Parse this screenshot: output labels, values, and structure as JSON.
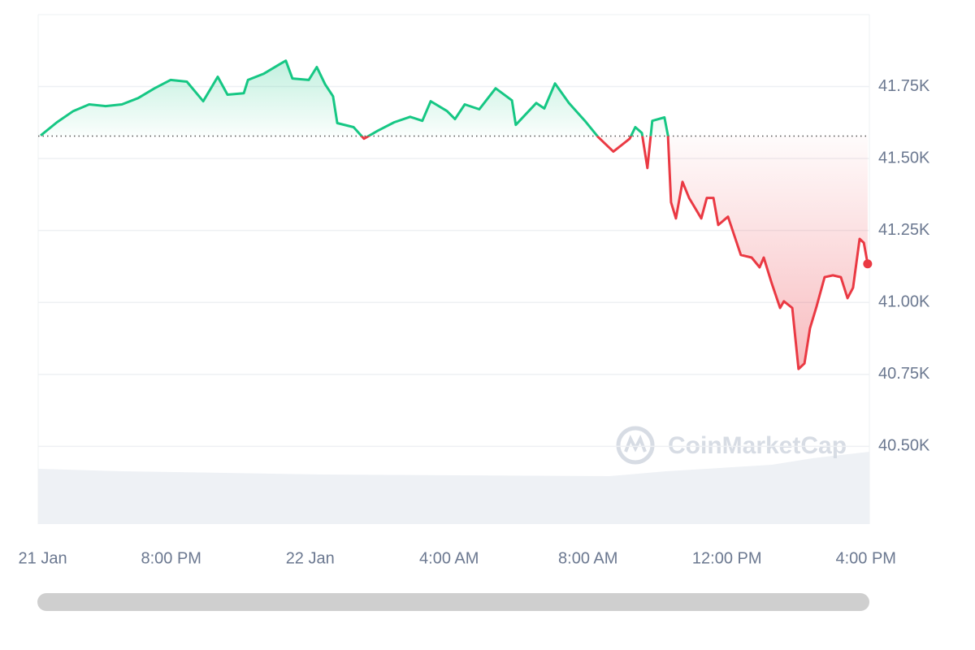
{
  "chart_data": {
    "type": "line",
    "x": [
      16.24,
      16.71,
      17.18,
      17.64,
      18.11,
      18.58,
      19.05,
      19.52,
      19.98,
      20.45,
      20.92,
      21.34,
      21.62,
      22.09,
      22.21,
      22.67,
      23.14,
      23.3,
      23.49,
      23.96,
      24.19,
      24.43,
      24.66,
      24.78,
      25.25,
      25.55,
      25.95,
      26.42,
      26.88,
      27.23,
      27.47,
      27.94,
      28.17,
      28.45,
      28.87,
      29.34,
      29.81,
      29.92,
      30.51,
      30.74,
      31.05,
      31.45,
      31.91,
      32.29,
      32.73,
      33.2,
      33.36,
      33.55,
      33.71,
      33.85,
      34.2,
      34.3,
      34.39,
      34.53,
      34.72,
      34.91,
      35.26,
      35.42,
      35.61,
      35.75,
      36.03,
      36.4,
      36.71,
      36.94,
      37.06,
      37.29,
      37.53,
      37.64,
      37.88,
      38.06,
      38.23,
      38.39,
      38.58,
      38.81,
      39.05,
      39.28,
      39.47,
      39.63,
      39.82,
      39.94,
      40.05
    ],
    "values": [
      41580,
      41626,
      41665,
      41688,
      41682,
      41688,
      41710,
      41744,
      41773,
      41767,
      41699,
      41784,
      41722,
      41727,
      41773,
      41795,
      41829,
      41840,
      41778,
      41773,
      41818,
      41758,
      41716,
      41623,
      41609,
      41569,
      41597,
      41626,
      41645,
      41631,
      41699,
      41665,
      41637,
      41688,
      41671,
      41744,
      41702,
      41617,
      41693,
      41674,
      41761,
      41693,
      41631,
      41575,
      41524,
      41569,
      41609,
      41589,
      41467,
      41631,
      41643,
      41580,
      41348,
      41292,
      41419,
      41363,
      41292,
      41363,
      41363,
      41269,
      41298,
      41165,
      41156,
      41122,
      41156,
      41066,
      40981,
      41004,
      40981,
      40769,
      40788,
      40910,
      40986,
      41088,
      41094,
      41088,
      41015,
      41051,
      41221,
      41207,
      41134
    ],
    "baseline": 41578,
    "color_up": "#16c784",
    "color_down": "#ea3943",
    "xlim": [
      16.17,
      40.1
    ],
    "ylim": [
      40230,
      42000
    ],
    "xticks": [
      {
        "value": 16.3,
        "label": "21 Jan"
      },
      {
        "value": 20,
        "label": "8:00 PM"
      },
      {
        "value": 24,
        "label": "22 Jan"
      },
      {
        "value": 28,
        "label": "4:00 AM"
      },
      {
        "value": 32,
        "label": "8:00 AM"
      },
      {
        "value": 36,
        "label": "12:00 PM"
      },
      {
        "value": 40,
        "label": "4:00 PM"
      }
    ],
    "yticks": [
      {
        "value": 40500,
        "label": "40.50K"
      },
      {
        "value": 40750,
        "label": "40.75K"
      },
      {
        "value": 41000,
        "label": "41.00K"
      },
      {
        "value": 41250,
        "label": "41.25K"
      },
      {
        "value": 41500,
        "label": "41.50K"
      },
      {
        "value": 41750,
        "label": "41.75K"
      }
    ],
    "grid": true,
    "watermark": "CoinMarketCap"
  }
}
